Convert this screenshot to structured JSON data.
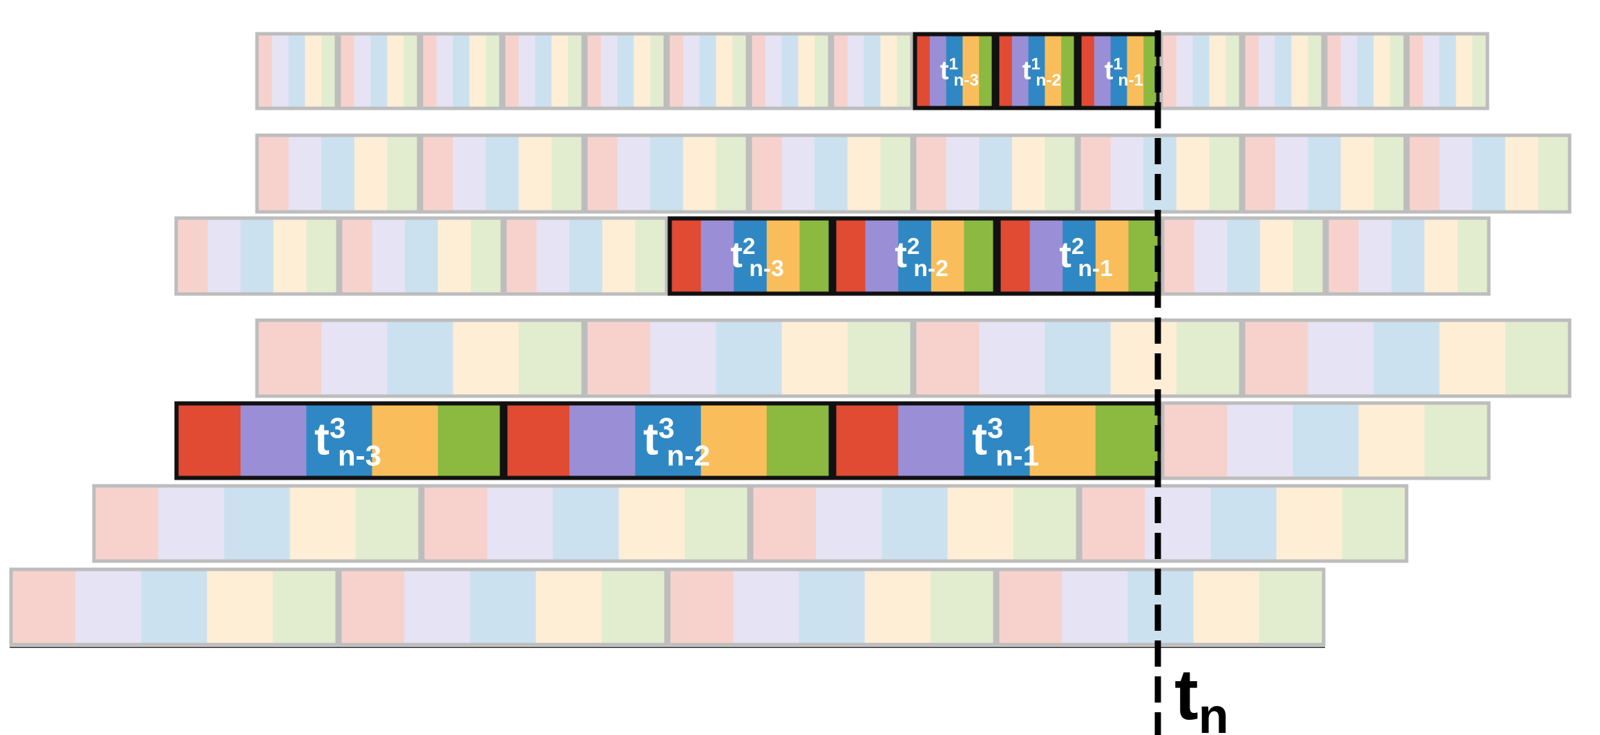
{
  "colors": {
    "stripes": [
      "#e14a33",
      "#9a8fd6",
      "#2f88c3",
      "#f9be5b",
      "#8cb940"
    ],
    "stripes_faded": [
      "#f7d2cd",
      "#e5e3f4",
      "#cbe1ef",
      "#feeed6",
      "#e2edd0"
    ],
    "faded_border": "#bdbdbd",
    "highlight_border": "#111111",
    "label_text": "#ffffff",
    "marker": "#000000"
  },
  "marker_label": {
    "base": "t",
    "sub": "n"
  },
  "highlighted_labels": [
    {
      "id": "t1-n3",
      "base": "t",
      "sup": "1",
      "sub": "n-3"
    },
    {
      "id": "t1-n2",
      "base": "t",
      "sup": "1",
      "sub": "n-2"
    },
    {
      "id": "t1-n1",
      "base": "t",
      "sup": "1",
      "sub": "n-1"
    },
    {
      "id": "t2-n3",
      "base": "t",
      "sup": "2",
      "sub": "n-3"
    },
    {
      "id": "t2-n2",
      "base": "t",
      "sup": "2",
      "sub": "n-2"
    },
    {
      "id": "t2-n1",
      "base": "t",
      "sup": "2",
      "sub": "n-1"
    },
    {
      "id": "t3-n3",
      "base": "t",
      "sup": "3",
      "sub": "n-3"
    },
    {
      "id": "t3-n2",
      "base": "t",
      "sup": "3",
      "sub": "n-2"
    },
    {
      "id": "t3-n1",
      "base": "t",
      "sup": "3",
      "sub": "n-1"
    }
  ]
}
